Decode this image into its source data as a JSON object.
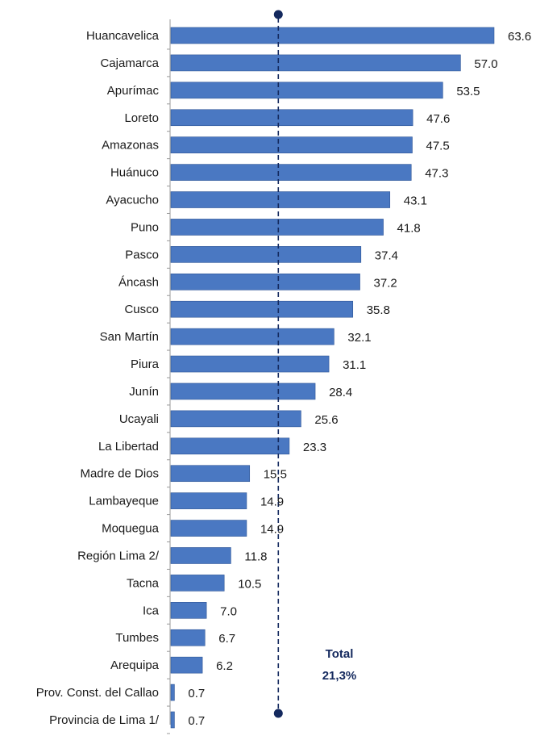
{
  "chart_data": {
    "type": "bar",
    "orientation": "horizontal",
    "categories": [
      "Huancavelica",
      "Cajamarca",
      "Apurímac",
      "Loreto",
      "Amazonas",
      "Huánuco",
      "Ayacucho",
      "Puno",
      "Pasco",
      "Áncash",
      "Cusco",
      "San Martín",
      "Piura",
      "Junín",
      "Ucayali",
      "La Libertad",
      "Madre de Dios",
      "Lambayeque",
      "Moquegua",
      "Región Lima 2/",
      "Tacna",
      "Ica",
      "Tumbes",
      "Arequipa",
      "Prov. Const. del Callao",
      "Provincia de Lima 1/"
    ],
    "values": [
      63.6,
      57.0,
      53.5,
      47.6,
      47.5,
      47.3,
      43.1,
      41.8,
      37.4,
      37.2,
      35.8,
      32.1,
      31.1,
      28.4,
      25.6,
      23.3,
      15.5,
      14.9,
      14.9,
      11.8,
      10.5,
      7.0,
      6.7,
      6.2,
      0.7,
      0.7
    ],
    "value_labels": [
      "63.6",
      "57.0",
      "53.5",
      "47.6",
      "47.5",
      "47.3",
      "43.1",
      "41.8",
      "37.4",
      "37.2",
      "35.8",
      "32.1",
      "31.1",
      "28.4",
      "25.6",
      "23.3",
      "15.5",
      "14.9",
      "14.9",
      "11.8",
      "10.5",
      "7.0",
      "6.7",
      "6.2",
      "0.7",
      "0.7"
    ],
    "xlim": [
      0,
      65
    ],
    "grid": false,
    "reference_line": {
      "value": 21.3,
      "label_line1": "Total",
      "label_line2": "21,3%",
      "style": "dashed"
    },
    "colors": {
      "bar_fill": "#4a78c2",
      "bar_edge": "#2e5596",
      "reference": "#14295e",
      "axis": "#9a9a9a"
    }
  }
}
